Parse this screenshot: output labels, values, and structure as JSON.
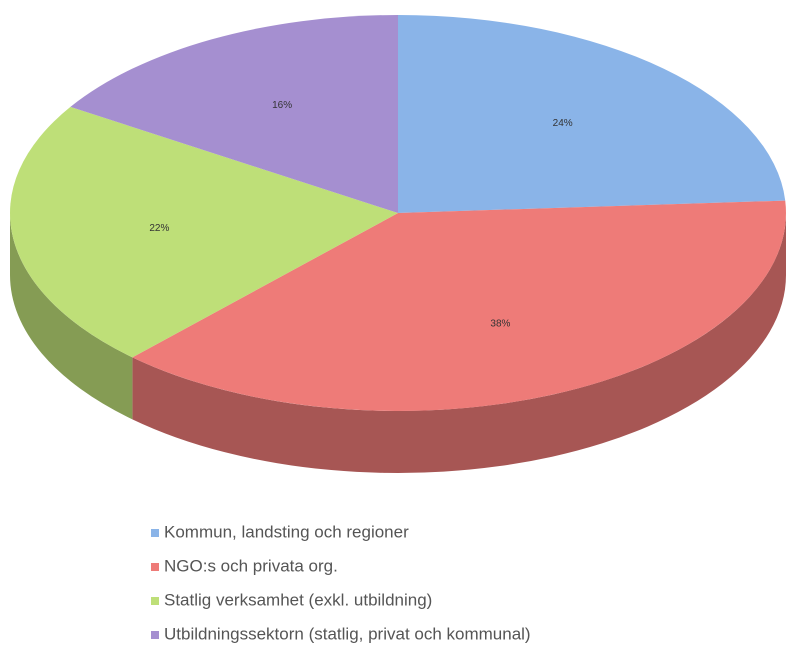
{
  "chart_data": {
    "type": "pie",
    "categories": [
      "Kommun, landsting och regioner",
      "NGO:s och privata org.",
      "Statlig verksamhet (exkl. utbildning)",
      "Utbildningssektorn (statlig, privat och kommunal)"
    ],
    "values": [
      24,
      38,
      22,
      16
    ],
    "value_labels": [
      "24%",
      "38%",
      "22%",
      "16%"
    ],
    "colors": [
      "#8ab4e8",
      "#ee7b78",
      "#bedf78",
      "#a58fd0"
    ],
    "legend": "bottom"
  }
}
